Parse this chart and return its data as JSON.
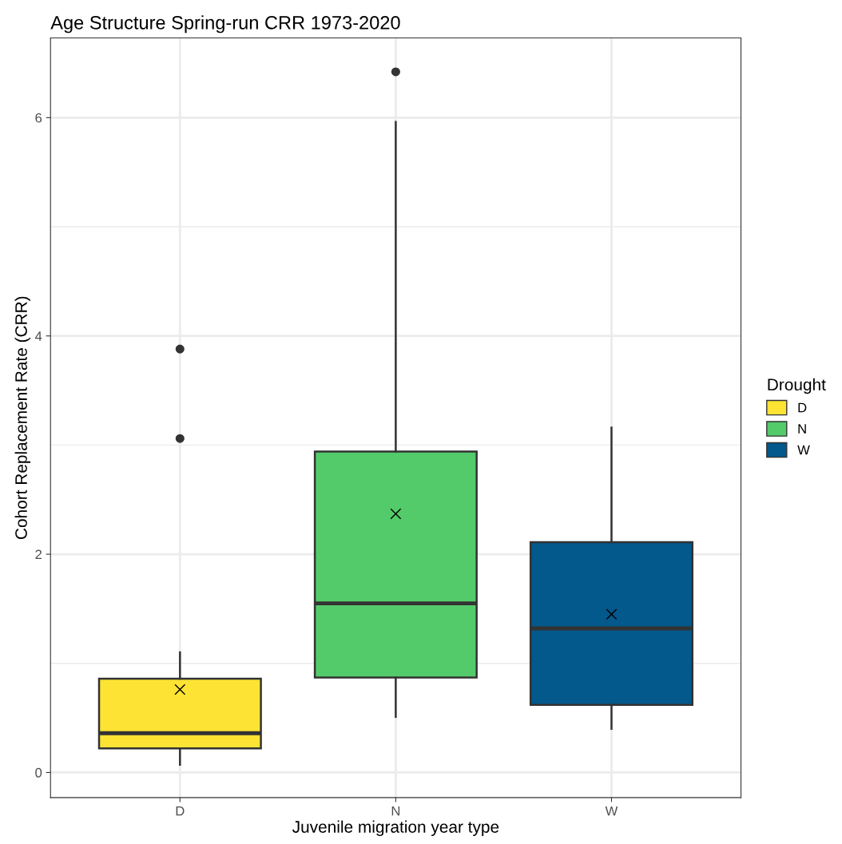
{
  "chart_data": {
    "type": "box",
    "title": "Age Structure Spring-run CRR 1973-2020",
    "xlabel": "Juvenile migration year type",
    "ylabel": "Cohort Replacement Rate (CRR)",
    "legend_title": "Drought",
    "legend": "right",
    "grid": true,
    "categories": [
      "D",
      "N",
      "W"
    ],
    "series": [
      {
        "name": "D",
        "color": "#fde333",
        "boxes": [
          {
            "low": 0.07,
            "q1": 0.22,
            "median": 0.36,
            "q3": 0.86,
            "high": 1.1,
            "mean": 0.76,
            "outliers": [
              3.88,
              3.06
            ]
          },
          null,
          null
        ]
      },
      {
        "name": "N",
        "color": "#53cb6a",
        "boxes": [
          null,
          {
            "low": 0.51,
            "q1": 0.87,
            "median": 1.55,
            "q3": 2.94,
            "high": 5.96,
            "mean": 2.37,
            "outliers": [
              6.42
            ]
          },
          null
        ]
      },
      {
        "name": "W",
        "color": "#03588c",
        "boxes": [
          null,
          null,
          {
            "low": 0.4,
            "q1": 0.62,
            "median": 1.32,
            "q3": 2.11,
            "high": 3.16,
            "mean": 1.45
          }
        ]
      }
    ],
    "ylim": [
      -0.23,
      6.73
    ],
    "yticks": [
      0,
      2,
      4,
      6
    ]
  }
}
